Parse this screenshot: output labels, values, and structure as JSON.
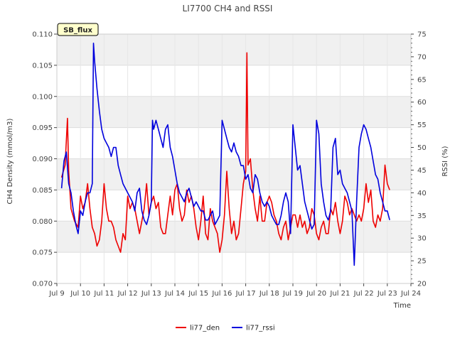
{
  "chart_data": {
    "type": "line",
    "title": "LI7700 CH4 and RSSI",
    "xlabel": "Time",
    "ylabel": "CH4 Density (mmol/m3)",
    "y2label": "RSSI (%)",
    "badge": "SB_flux",
    "x_ticks": [
      "Jul 9",
      "Jul 10",
      "Jul 11",
      "Jul 12",
      "Jul 13",
      "Jul 14",
      "Jul 15",
      "Jul 16",
      "Jul 17",
      "Jul 18",
      "Jul 19",
      "Jul 20",
      "Jul 21",
      "Jul 22",
      "Jul 23",
      "Jul 24"
    ],
    "x_tick_days": [
      9,
      10,
      11,
      12,
      13,
      14,
      15,
      16,
      17,
      18,
      19,
      20,
      21,
      22,
      23,
      24
    ],
    "xlim": [
      9,
      24
    ],
    "ylim": [
      0.07,
      0.11
    ],
    "y_ticks": [
      "0.070",
      "0.075",
      "0.080",
      "0.085",
      "0.090",
      "0.095",
      "0.100",
      "0.105",
      "0.110"
    ],
    "y_tick_values": [
      0.07,
      0.075,
      0.08,
      0.085,
      0.09,
      0.095,
      0.1,
      0.105,
      0.11
    ],
    "y2lim": [
      20,
      75
    ],
    "y2_ticks": [
      "20",
      "25",
      "30",
      "35",
      "40",
      "45",
      "50",
      "55",
      "60",
      "65",
      "70",
      "75"
    ],
    "y2_tick_values": [
      20,
      25,
      30,
      35,
      40,
      45,
      50,
      55,
      60,
      65,
      70,
      75
    ],
    "grid": true,
    "legend_position": "bottom-center",
    "colors": {
      "li77_den": "#ee0000",
      "li77_rssi": "#0000dd",
      "band": "#f0f0f0",
      "badge_fill": "#ffffcc"
    },
    "series": [
      {
        "name": "li77_den",
        "axis": "left",
        "x": [
          9.2,
          9.35,
          9.45,
          9.5,
          9.6,
          9.75,
          9.9,
          10.0,
          10.1,
          10.2,
          10.3,
          10.4,
          10.5,
          10.6,
          10.7,
          10.8,
          10.9,
          11.0,
          11.1,
          11.2,
          11.3,
          11.4,
          11.5,
          11.6,
          11.7,
          11.8,
          11.9,
          12.0,
          12.1,
          12.2,
          12.3,
          12.4,
          12.5,
          12.6,
          12.7,
          12.8,
          12.9,
          13.0,
          13.1,
          13.2,
          13.3,
          13.4,
          13.5,
          13.6,
          13.7,
          13.8,
          13.9,
          14.0,
          14.1,
          14.2,
          14.3,
          14.4,
          14.5,
          14.6,
          14.7,
          14.8,
          14.9,
          15.0,
          15.1,
          15.2,
          15.3,
          15.4,
          15.5,
          15.6,
          15.7,
          15.8,
          15.9,
          16.0,
          16.1,
          16.2,
          16.3,
          16.4,
          16.5,
          16.6,
          16.7,
          16.8,
          16.9,
          17.0,
          17.05,
          17.1,
          17.2,
          17.3,
          17.4,
          17.5,
          17.6,
          17.7,
          17.8,
          17.9,
          18.0,
          18.1,
          18.2,
          18.3,
          18.4,
          18.5,
          18.6,
          18.7,
          18.8,
          18.9,
          19.0,
          19.1,
          19.2,
          19.3,
          19.4,
          19.5,
          19.6,
          19.7,
          19.8,
          19.9,
          20.0,
          20.1,
          20.2,
          20.3,
          20.4,
          20.5,
          20.6,
          20.7,
          20.8,
          20.9,
          21.0,
          21.1,
          21.2,
          21.3,
          21.4,
          21.5,
          21.6,
          21.7,
          21.8,
          21.9,
          22.0,
          22.1,
          22.2,
          22.3,
          22.4,
          22.5,
          22.6,
          22.7,
          22.8,
          22.9,
          23.0,
          23.1
        ],
        "values": [
          0.087,
          0.089,
          0.0965,
          0.088,
          0.082,
          0.08,
          0.079,
          0.084,
          0.082,
          0.083,
          0.086,
          0.082,
          0.079,
          0.078,
          0.076,
          0.077,
          0.08,
          0.086,
          0.082,
          0.08,
          0.08,
          0.079,
          0.077,
          0.076,
          0.075,
          0.078,
          0.077,
          0.084,
          0.082,
          0.083,
          0.082,
          0.08,
          0.078,
          0.08,
          0.082,
          0.086,
          0.081,
          0.083,
          0.084,
          0.082,
          0.083,
          0.079,
          0.078,
          0.078,
          0.081,
          0.084,
          0.081,
          0.085,
          0.086,
          0.082,
          0.08,
          0.081,
          0.085,
          0.083,
          0.084,
          0.082,
          0.079,
          0.077,
          0.08,
          0.084,
          0.078,
          0.077,
          0.082,
          0.08,
          0.079,
          0.078,
          0.075,
          0.077,
          0.081,
          0.088,
          0.082,
          0.078,
          0.08,
          0.077,
          0.078,
          0.082,
          0.086,
          0.088,
          0.107,
          0.089,
          0.09,
          0.085,
          0.082,
          0.08,
          0.084,
          0.08,
          0.08,
          0.083,
          0.084,
          0.083,
          0.081,
          0.08,
          0.078,
          0.077,
          0.079,
          0.08,
          0.077,
          0.079,
          0.081,
          0.081,
          0.079,
          0.081,
          0.079,
          0.08,
          0.078,
          0.079,
          0.082,
          0.081,
          0.078,
          0.077,
          0.079,
          0.08,
          0.078,
          0.078,
          0.082,
          0.081,
          0.083,
          0.08,
          0.078,
          0.08,
          0.084,
          0.083,
          0.081,
          0.082,
          0.081,
          0.08,
          0.081,
          0.08,
          0.082,
          0.086,
          0.083,
          0.085,
          0.08,
          0.079,
          0.081,
          0.08,
          0.082,
          0.089,
          0.086,
          0.085
        ]
      },
      {
        "name": "li77_rssi",
        "axis": "right",
        "x": [
          9.2,
          9.3,
          9.4,
          9.5,
          9.6,
          9.7,
          9.8,
          9.9,
          10.0,
          10.1,
          10.2,
          10.3,
          10.4,
          10.5,
          10.55,
          10.6,
          10.7,
          10.8,
          10.9,
          11.0,
          11.1,
          11.2,
          11.3,
          11.4,
          11.5,
          11.6,
          11.7,
          11.8,
          11.9,
          12.0,
          12.1,
          12.2,
          12.3,
          12.4,
          12.5,
          12.6,
          12.7,
          12.8,
          12.9,
          13.0,
          13.05,
          13.1,
          13.2,
          13.3,
          13.4,
          13.5,
          13.6,
          13.7,
          13.8,
          13.9,
          14.0,
          14.1,
          14.2,
          14.3,
          14.4,
          14.5,
          14.6,
          14.7,
          14.8,
          14.9,
          15.0,
          15.1,
          15.2,
          15.3,
          15.4,
          15.5,
          15.6,
          15.7,
          15.8,
          15.9,
          16.0,
          16.1,
          16.2,
          16.3,
          16.4,
          16.5,
          16.6,
          16.7,
          16.8,
          16.9,
          17.0,
          17.1,
          17.2,
          17.3,
          17.4,
          17.5,
          17.6,
          17.7,
          17.8,
          17.9,
          18.0,
          18.1,
          18.2,
          18.3,
          18.4,
          18.5,
          18.6,
          18.7,
          18.8,
          18.9,
          19.0,
          19.1,
          19.2,
          19.3,
          19.4,
          19.5,
          19.6,
          19.7,
          19.8,
          19.9,
          20.0,
          20.1,
          20.2,
          20.3,
          20.4,
          20.5,
          20.6,
          20.7,
          20.8,
          20.9,
          21.0,
          21.1,
          21.2,
          21.3,
          21.4,
          21.5,
          21.6,
          21.7,
          21.8,
          21.9,
          22.0,
          22.1,
          22.2,
          22.3,
          22.4,
          22.5,
          22.6,
          22.7,
          22.8,
          22.9,
          23.0,
          23.1
        ],
        "values": [
          41,
          47,
          49,
          42,
          40,
          36,
          33,
          31,
          36,
          35,
          38,
          40,
          40,
          42,
          73,
          69,
          63,
          58,
          54,
          52,
          51,
          50,
          48,
          50,
          50,
          46,
          44,
          42,
          41,
          40,
          39,
          38,
          36,
          40,
          41,
          36,
          34,
          33,
          35,
          38,
          56,
          54,
          56,
          54,
          52,
          50,
          54,
          55,
          50,
          48,
          45,
          42,
          40,
          39,
          38,
          40,
          41,
          39,
          37,
          38,
          37,
          36,
          36,
          34,
          34,
          35,
          36,
          33,
          34,
          35,
          56,
          54,
          52,
          50,
          49,
          51,
          49,
          48,
          46,
          46,
          43,
          44,
          41,
          40,
          44,
          43,
          40,
          38,
          37,
          38,
          37,
          35,
          34,
          33,
          33,
          35,
          38,
          40,
          38,
          31,
          55,
          50,
          45,
          46,
          42,
          38,
          36,
          34,
          32,
          33,
          56,
          53,
          42,
          38,
          35,
          34,
          36,
          50,
          52,
          44,
          45,
          42,
          41,
          40,
          38,
          36,
          24,
          38,
          50,
          53,
          55,
          54,
          52,
          50,
          47,
          44,
          43,
          40,
          38,
          36,
          36,
          34
        ]
      }
    ]
  }
}
